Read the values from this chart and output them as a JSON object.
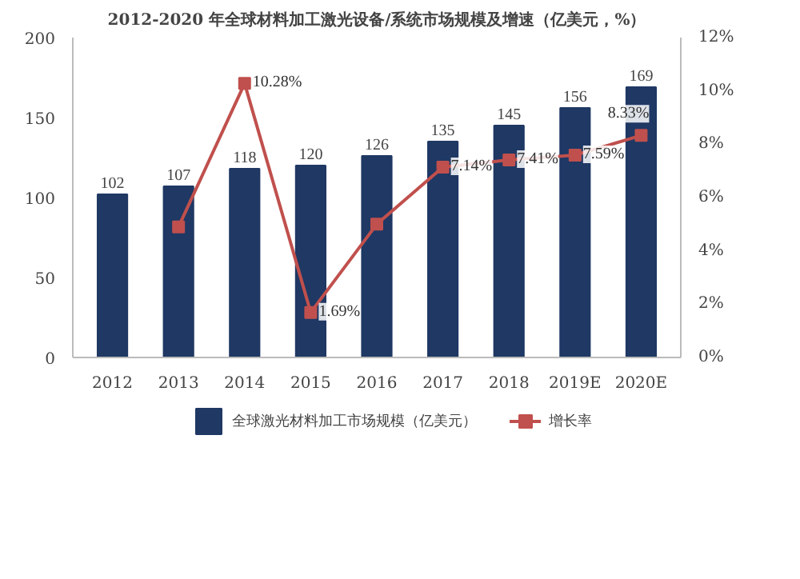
{
  "chart_data": {
    "type": "bar",
    "title": "2012-2020 年全球材料加工激光设备/系统市场规模及增速（亿美元，%）",
    "categories": [
      "2012",
      "2013",
      "2014",
      "2015",
      "2016",
      "2017",
      "2018",
      "2019E",
      "2020E"
    ],
    "series": [
      {
        "name": "全球激光材料加工市场规模（亿美元）",
        "color": "#1f3864",
        "values": [
          102,
          107,
          118,
          120,
          126,
          135,
          145,
          156,
          169
        ],
        "data_labels": true
      },
      {
        "name": "增长率",
        "type": "line",
        "axis": "y2",
        "color": "#c0504d",
        "marker": "square",
        "values": [
          null,
          4.9,
          10.28,
          1.69,
          5.0,
          7.14,
          7.41,
          7.59,
          8.33
        ],
        "value_labels": [
          null,
          null,
          "10.28%",
          "1.69%",
          null,
          "7.14%",
          "7.41%",
          "7.59%",
          "8.33%"
        ]
      }
    ],
    "ylim": [
      0,
      200
    ],
    "yticks": [
      0,
      50,
      100,
      150,
      200
    ],
    "y2lim": [
      0,
      12
    ],
    "y2ticks": [
      {
        "value": 0,
        "label": "0%"
      },
      {
        "value": 2,
        "label": "2%"
      },
      {
        "value": 4,
        "label": "4%"
      },
      {
        "value": 6,
        "label": "6%"
      },
      {
        "value": 8,
        "label": "8%"
      },
      {
        "value": 10,
        "label": "10%"
      },
      {
        "value": 12,
        "label": "12%"
      }
    ],
    "legend": "bottom",
    "grid": false
  }
}
